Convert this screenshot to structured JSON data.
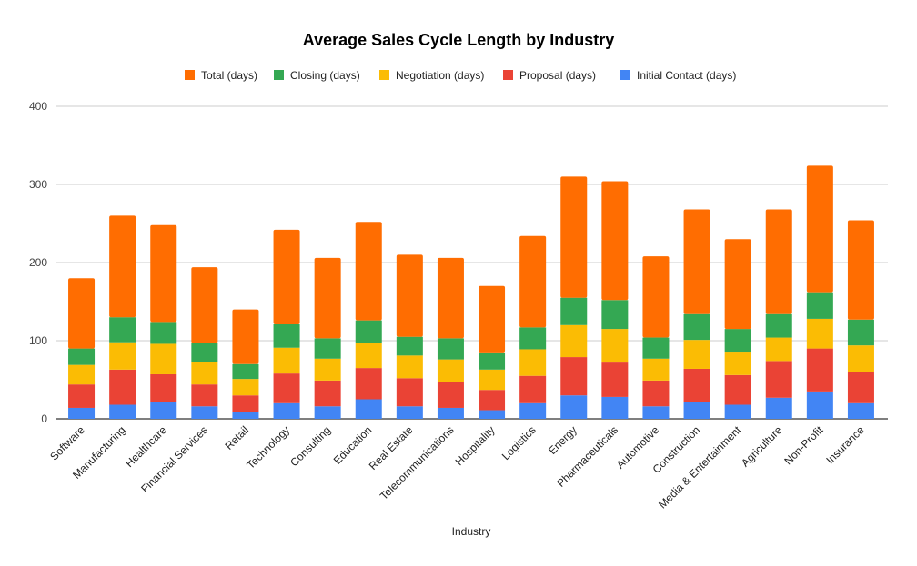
{
  "chart_data": {
    "type": "bar",
    "stacked": true,
    "title": "Average Sales Cycle Length by Industry",
    "xlabel": "Industry",
    "ylabel": "",
    "ylim": [
      0,
      400
    ],
    "yticks": [
      0,
      100,
      200,
      300,
      400
    ],
    "grid": true,
    "legend_position": "top",
    "categories": [
      "Software",
      "Manufacturing",
      "Healthcare",
      "Financial Services",
      "Retail",
      "Technology",
      "Consulting",
      "Education",
      "Real Estate",
      "Telecommunications",
      "Hospitality",
      "Logistics",
      "Energy",
      "Pharmaceuticals",
      "Automotive",
      "Construction",
      "Media & Entertainment",
      "Agriculture",
      "Non-Profit",
      "Insurance"
    ],
    "series": [
      {
        "name": "Initial Contact (days)",
        "color": "#4285f4",
        "values": [
          14,
          18,
          22,
          16,
          9,
          20,
          16,
          25,
          16,
          14,
          11,
          20,
          30,
          28,
          16,
          22,
          18,
          27,
          35,
          20
        ]
      },
      {
        "name": "Proposal (days)",
        "color": "#ea4335",
        "values": [
          30,
          45,
          35,
          28,
          21,
          38,
          33,
          40,
          36,
          33,
          26,
          35,
          49,
          44,
          33,
          42,
          38,
          47,
          55,
          40
        ]
      },
      {
        "name": "Negotiation (days)",
        "color": "#fbbc04",
        "values": [
          25,
          35,
          39,
          29,
          21,
          33,
          28,
          32,
          29,
          29,
          26,
          34,
          41,
          43,
          28,
          37,
          30,
          30,
          38,
          34
        ]
      },
      {
        "name": "Closing (days)",
        "color": "#34a853",
        "values": [
          21,
          32,
          28,
          24,
          19,
          30,
          26,
          29,
          24,
          27,
          22,
          28,
          35,
          37,
          27,
          33,
          29,
          30,
          34,
          33
        ]
      },
      {
        "name": "Total (days)",
        "color": "#ff6d01",
        "values": [
          90,
          130,
          124,
          97,
          70,
          121,
          103,
          126,
          105,
          103,
          85,
          117,
          155,
          152,
          104,
          134,
          115,
          134,
          162,
          127
        ]
      }
    ],
    "legend_order": [
      "Total (days)",
      "Closing (days)",
      "Negotiation (days)",
      "Proposal (days)",
      "Initial Contact (days)"
    ]
  }
}
